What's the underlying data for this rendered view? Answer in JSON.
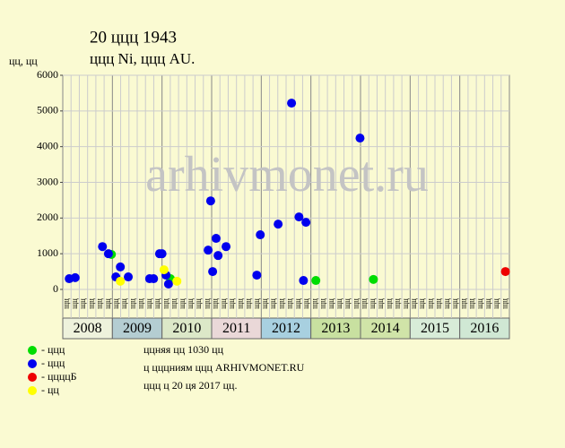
{
  "chart_data": {
    "type": "scatter",
    "title": "20 ццц 1943",
    "subtitle": "ццц Ni, ццц AU.",
    "y_label": "цц, цц",
    "watermark": "arhivmonet.ru",
    "xlim": [
      2008,
      2017
    ],
    "years": [
      2008,
      2009,
      2010,
      2011,
      2012,
      2013,
      2014,
      2015,
      2016
    ],
    "year_colors": [
      "#eef2dc",
      "#b4cdd2",
      "#dce8c8",
      "#ead8d8",
      "#a8d0e0",
      "#c8e0a0",
      "#d0e4a8",
      "#d8ecd8",
      "#d0e8d4"
    ],
    "subcolumn_labels": [
      "щц",
      "щц",
      "щц",
      "щц",
      "щц",
      "щц"
    ],
    "ylim": [
      0,
      6000
    ],
    "yticks": [
      0,
      1000,
      2000,
      3000,
      4000,
      5000,
      6000
    ],
    "grid": true,
    "series": [
      {
        "name": "- ццц",
        "color": "#00dd00",
        "x": [
          2008.98,
          2010.17,
          2013.1,
          2014.26
        ],
        "values": [
          980,
          300,
          250,
          280
        ]
      },
      {
        "name": "- ццц",
        "color": "#0000ee",
        "x": [
          2008.13,
          2008.25,
          2008.8,
          2008.92,
          2009.07,
          2009.16,
          2009.32,
          2009.75,
          2009.83,
          2009.95,
          2010.0,
          2010.08,
          2010.13,
          2010.93,
          2010.98,
          2011.02,
          2011.09,
          2011.13,
          2011.29,
          2011.91,
          2011.98,
          2012.34,
          2012.61,
          2012.76,
          2012.85,
          2012.9,
          2013.99
        ],
        "values": [
          300,
          330,
          1200,
          1000,
          350,
          630,
          350,
          300,
          300,
          1000,
          1000,
          400,
          150,
          1100,
          2480,
          500,
          1430,
          950,
          1200,
          400,
          1530,
          1830,
          5220,
          2030,
          250,
          1880,
          4240
        ]
      },
      {
        "name": "- ццццБ",
        "color": "#ee0000",
        "x": [
          2016.92
        ],
        "values": [
          500
        ]
      },
      {
        "name": "- цц",
        "color": "#ffff00",
        "x": [
          2009.16,
          2010.04,
          2010.3
        ],
        "values": [
          230,
          550,
          230
        ]
      }
    ],
    "notes": [
      "ццняя цц 1030 цц",
      "ц цццниям ццц ARHIVMONET.RU",
      "ццц ц 20 ця 2017 цц."
    ]
  }
}
